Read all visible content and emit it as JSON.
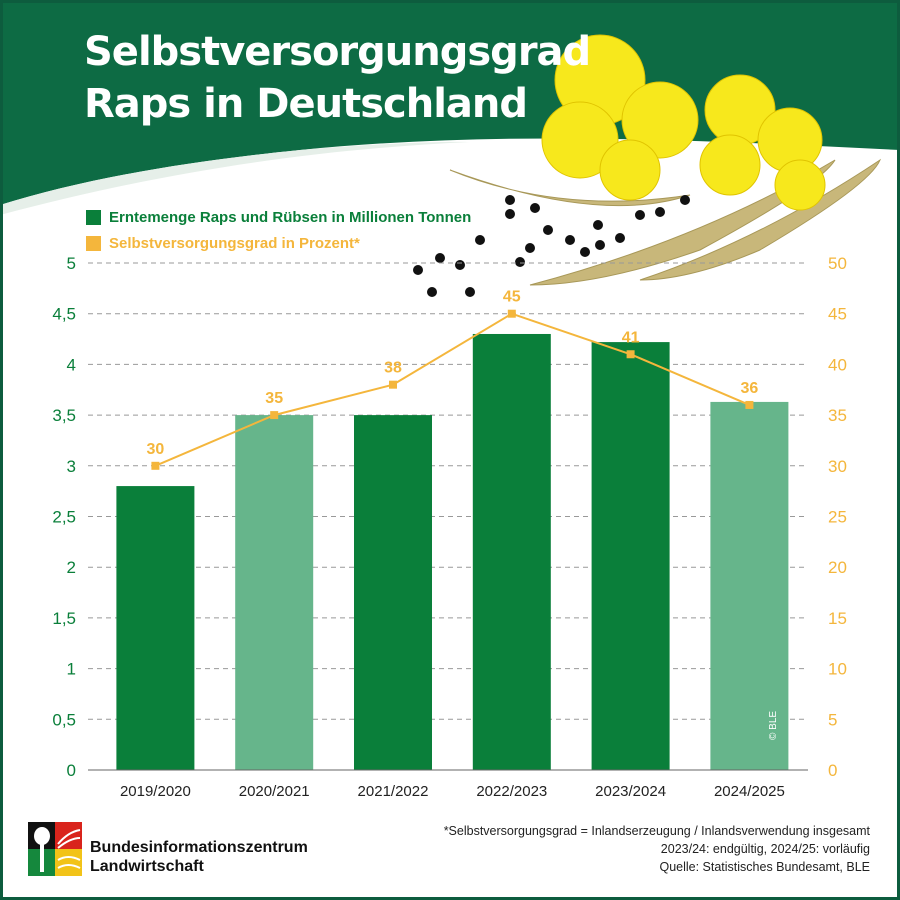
{
  "title_line1": "Selbstversorgungsgrad",
  "title_line2": "Raps in Deutschland",
  "colors": {
    "bar_dark": "#0a7f3a",
    "bar_light": "#66b58b",
    "line": "#f4b63c",
    "header": "#0d6b44"
  },
  "chart_data": {
    "type": "bar+line",
    "categories": [
      "2019/2020",
      "2020/2021",
      "2021/2022",
      "2022/2023",
      "2023/2024",
      "2024/2025"
    ],
    "series": [
      {
        "name": "Erntemenge Raps und Rübsen in Millionen Tonnen",
        "type": "bar",
        "axis": "left",
        "values": [
          2.8,
          3.5,
          3.5,
          4.3,
          4.22,
          3.63
        ]
      },
      {
        "name": "Selbstversorgungsgrad in Prozent*",
        "type": "line",
        "axis": "right",
        "values": [
          30,
          35,
          38,
          45,
          41,
          36
        ],
        "labels": [
          "30",
          "35",
          "38",
          "45",
          "41",
          "36"
        ]
      }
    ],
    "left_axis": {
      "ylim": [
        0,
        5
      ],
      "ticks": [
        "0",
        "0,5",
        "1",
        "1,5",
        "2",
        "2,5",
        "3",
        "3,5",
        "4",
        "4,5",
        "5"
      ]
    },
    "right_axis": {
      "ylim": [
        0,
        50
      ],
      "ticks": [
        "0",
        "5",
        "10",
        "15",
        "20",
        "25",
        "30",
        "35",
        "40",
        "45",
        "50"
      ]
    },
    "grid": "horizontal dashed",
    "legend": "top-left"
  },
  "copyright": "© BLE",
  "logo": {
    "line1": "Bundesinformationszentrum",
    "line2": "Landwirtschaft"
  },
  "notes": [
    "*Selbstversorgungsgrad = Inlandserzeugung / Inlandsverwendung insgesamt",
    "2023/24: endgültig, 2024/25: vorläufig",
    "Quelle: Statistisches Bundesamt, BLE"
  ]
}
